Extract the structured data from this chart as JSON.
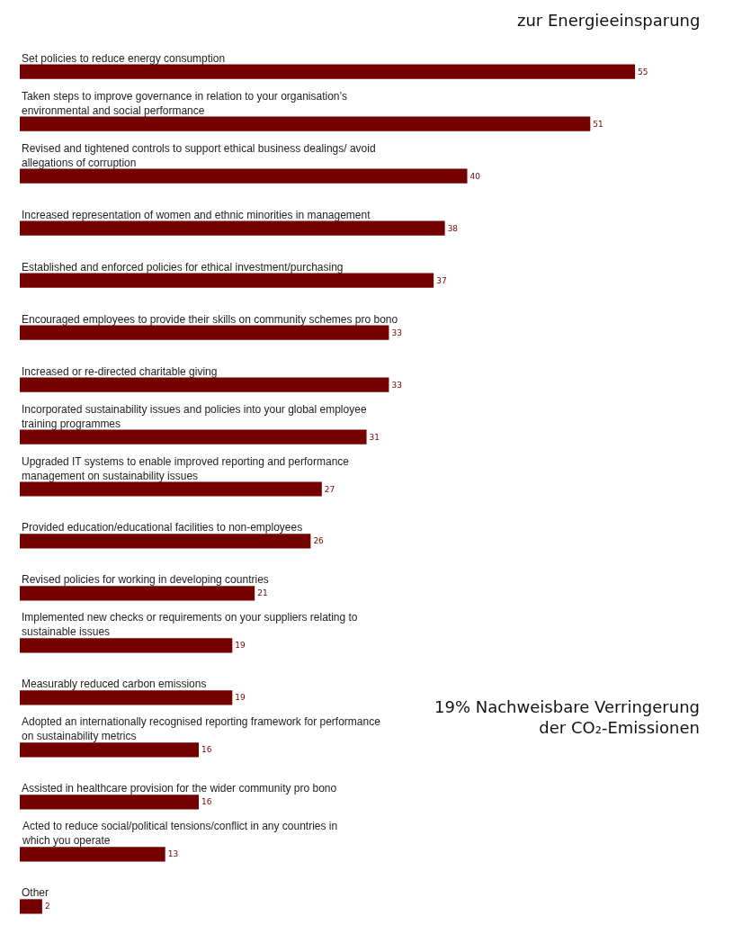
{
  "chart_data": {
    "type": "bar",
    "orientation": "horizontal",
    "data_labels": true,
    "categories": [
      "Set policies to reduce energy consumption",
      "Taken steps to improve governance in relation to your organisation’s environmental and social performance",
      "Revised and tightened controls to support ethical business dealings/ avoid allegations of corruption",
      "Increased representation of women and ethnic minorities in management",
      "Established and enforced policies for ethical investment/purchasing",
      "Encouraged employees to provide their skills on community schemes pro bono",
      "Increased or re-directed charitable giving",
      "Incorporated sustainability issues and policies into your global employee training programmes",
      "Upgraded IT systems to enable improved reporting and performance management on sustainability issues",
      "Provided education/educational facilities to non-employees",
      "Revised policies for working in developing countries",
      "Implemented new checks or requirements on your suppliers relating to sustainable issues",
      "Measurably reduced carbon emissions",
      "Adopted an internationally recognised reporting framework for performance on sustainability metrics",
      "Assisted in healthcare provision for the wider community pro bono",
      "Acted to reduce social/political tensions/conflict in any countries in which you operate",
      "Other"
    ],
    "values": [
      55,
      51,
      40,
      38,
      37,
      33,
      33,
      31,
      27,
      26,
      21,
      19,
      19,
      16,
      16,
      13,
      2
    ],
    "color": "#750000",
    "annotations": [
      "zur Energieeinsparung",
      "19% Nachweisbare Verringerung der CO₂-Emissionen"
    ]
  }
}
